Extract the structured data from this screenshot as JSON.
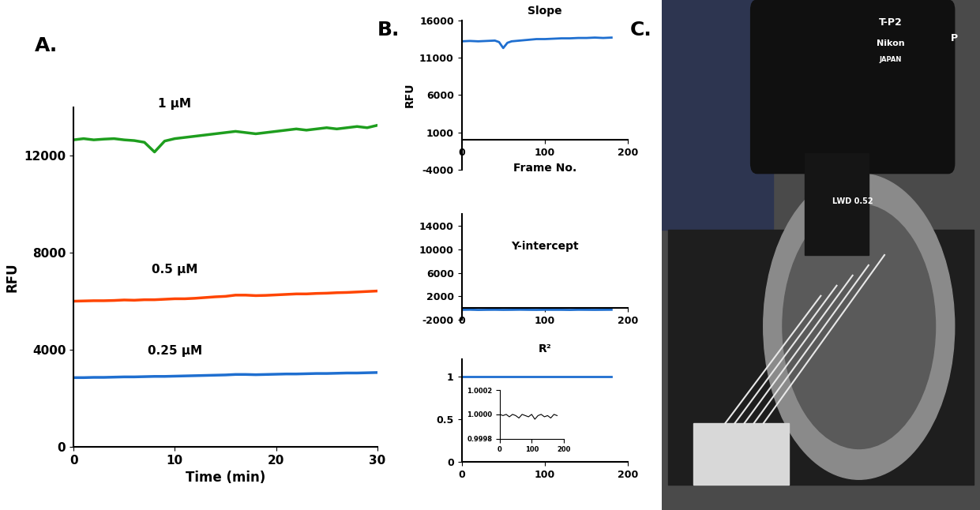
{
  "chart_data": [
    {
      "type": "line",
      "panel": "A.",
      "xlabel": "Time (min)",
      "ylabel": "RFU",
      "xlim": [
        0,
        30
      ],
      "xticks": [
        0,
        10,
        20,
        30
      ],
      "ylim": [
        0,
        14000
      ],
      "yticks": [
        0,
        4000,
        8000,
        12000
      ],
      "x": [
        0,
        1,
        2,
        3,
        4,
        5,
        6,
        7,
        8,
        9,
        10,
        11,
        12,
        13,
        14,
        15,
        16,
        17,
        18,
        19,
        20,
        21,
        22,
        23,
        24,
        25,
        26,
        27,
        28,
        29,
        30
      ],
      "series": [
        {
          "name": "1 µM",
          "color": "#1e9e1e",
          "values": [
            12650,
            12700,
            12650,
            12680,
            12700,
            12650,
            12620,
            12550,
            12150,
            12600,
            12700,
            12750,
            12800,
            12850,
            12900,
            12950,
            13000,
            12950,
            12900,
            12950,
            13000,
            13050,
            13100,
            13050,
            13100,
            13150,
            13100,
            13150,
            13200,
            13150,
            13250
          ]
        },
        {
          "name": "0.5 µM",
          "color": "#ff4500",
          "values": [
            6000,
            6010,
            6020,
            6020,
            6030,
            6050,
            6040,
            6060,
            6060,
            6080,
            6100,
            6100,
            6120,
            6150,
            6180,
            6200,
            6250,
            6250,
            6230,
            6240,
            6260,
            6280,
            6300,
            6300,
            6320,
            6330,
            6350,
            6360,
            6380,
            6400,
            6420
          ]
        },
        {
          "name": "0.25 µM",
          "color": "#1f6fd0",
          "values": [
            2850,
            2850,
            2860,
            2860,
            2870,
            2880,
            2880,
            2890,
            2900,
            2900,
            2910,
            2920,
            2930,
            2940,
            2950,
            2960,
            2980,
            2980,
            2970,
            2980,
            2990,
            3000,
            3000,
            3010,
            3020,
            3020,
            3030,
            3040,
            3040,
            3050,
            3060
          ]
        }
      ]
    },
    {
      "type": "line",
      "panel": "B.",
      "title": "Slope",
      "xlabel": "Frame No.",
      "ylabel": "RFU",
      "xlim": [
        0,
        200
      ],
      "xticks": [
        0,
        100,
        200
      ],
      "ylim": [
        -4000,
        16000
      ],
      "yticks": [
        -4000,
        1000,
        6000,
        11000,
        16000
      ],
      "x": [
        0,
        10,
        20,
        30,
        40,
        45,
        50,
        55,
        60,
        70,
        80,
        90,
        100,
        110,
        120,
        130,
        140,
        150,
        160,
        170,
        180
      ],
      "series": [
        {
          "color": "#1f6fd0",
          "values": [
            13200,
            13250,
            13200,
            13250,
            13300,
            13100,
            12300,
            13000,
            13200,
            13300,
            13400,
            13500,
            13500,
            13550,
            13600,
            13600,
            13650,
            13650,
            13700,
            13650,
            13700
          ]
        }
      ]
    },
    {
      "type": "line",
      "title": "Y-intercept",
      "xlim": [
        0,
        200
      ],
      "xticks": [
        0,
        100,
        200
      ],
      "ylim": [
        -2000,
        16000
      ],
      "yticks": [
        -2000,
        2000,
        6000,
        10000,
        14000
      ],
      "x": [
        0,
        10,
        20,
        30,
        40,
        50,
        60,
        70,
        80,
        90,
        100,
        110,
        120,
        130,
        140,
        150,
        160,
        170,
        180
      ],
      "series": [
        {
          "color": "#1f6fd0",
          "values": [
            -300,
            -280,
            -320,
            -300,
            -290,
            -310,
            -300,
            -280,
            -300,
            -310,
            -290,
            -300,
            -300,
            -320,
            -290,
            -300,
            -310,
            -300,
            -290
          ]
        }
      ]
    },
    {
      "type": "line",
      "title": "R²",
      "xlim": [
        0,
        200
      ],
      "xticks": [
        0,
        100,
        200
      ],
      "ylim": [
        0,
        1.2
      ],
      "yticks": [
        0,
        0.5,
        1
      ],
      "x": [
        0,
        10,
        20,
        30,
        40,
        50,
        60,
        70,
        80,
        90,
        100,
        110,
        120,
        130,
        140,
        150,
        160,
        170,
        180
      ],
      "series": [
        {
          "color": "#1f6fd0",
          "values": [
            1,
            1,
            1,
            1,
            1,
            1,
            1,
            1,
            1,
            1,
            1,
            1,
            1,
            1,
            1,
            1,
            1,
            1,
            1
          ]
        }
      ]
    },
    {
      "type": "line",
      "xlim": [
        0,
        200
      ],
      "xticks": [
        0,
        100,
        200
      ],
      "ylim": [
        0.9998,
        1.0002
      ],
      "yticks": [
        0.9998,
        {
          "value": 1,
          "label": "1.0000"
        },
        1.0002
      ],
      "x": [
        0,
        10,
        20,
        30,
        40,
        50,
        60,
        70,
        80,
        90,
        100,
        110,
        120,
        130,
        140,
        150,
        160,
        170,
        180
      ],
      "series": [
        {
          "color": "#000000",
          "values": [
            1.0,
            0.99999,
            1.0,
            0.99998,
            1.0,
            0.99999,
            0.99997,
            1.0,
            0.99999,
            0.99998,
            1.0,
            0.99996,
            0.99999,
            1.0,
            0.99998,
            0.99999,
            0.99997,
            1.0,
            0.99999
          ]
        }
      ]
    }
  ],
  "photo": {
    "panel": "C.",
    "texts": [
      "T-P2",
      "Nikon",
      "JAPAN",
      "P",
      "LWD 0.52"
    ]
  }
}
